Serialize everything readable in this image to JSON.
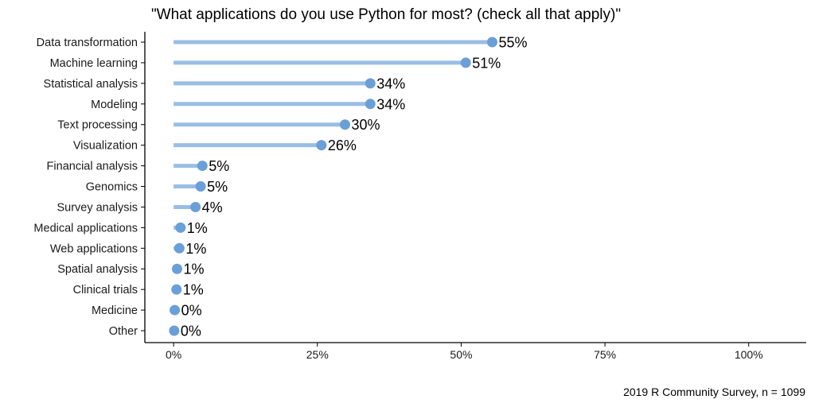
{
  "chart_data": {
    "type": "lollipop",
    "title": "\"What applications do you use Python for most? (check all that apply)\"",
    "caption": "2019 R Community Survey, n = 1099",
    "categories": [
      "Data transformation",
      "Machine learning",
      "Statistical analysis",
      "Modeling",
      "Text processing",
      "Visualization",
      "Financial analysis",
      "Genomics",
      "Survey analysis",
      "Medical applications",
      "Web applications",
      "Spatial analysis",
      "Clinical trials",
      "Medicine",
      "Other"
    ],
    "values": [
      55.4,
      50.8,
      34.2,
      34.2,
      29.8,
      25.7,
      5.0,
      4.7,
      3.8,
      1.2,
      1.0,
      0.6,
      0.5,
      0.2,
      0.1
    ],
    "value_labels": [
      "55%",
      "51%",
      "34%",
      "34%",
      "30%",
      "26%",
      "5%",
      "5%",
      "4%",
      "1%",
      "1%",
      "1%",
      "1%",
      "0%",
      "0%"
    ],
    "xticks": [
      0,
      25,
      50,
      75,
      100
    ],
    "xtick_labels": [
      "0%",
      "25%",
      "50%",
      "75%",
      "100%"
    ],
    "xlim": [
      -5,
      110
    ],
    "xlabel": "",
    "ylabel": "",
    "grid": false,
    "colors": {
      "stem": "#99bee4",
      "dot": "#6a9fd8",
      "axis": "#000000"
    }
  }
}
